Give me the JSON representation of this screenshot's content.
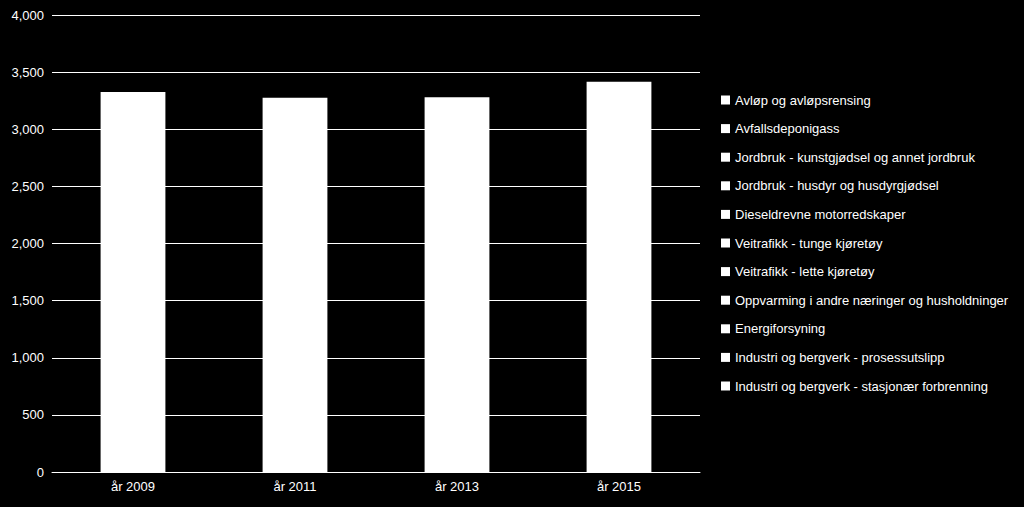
{
  "chart_data": {
    "type": "bar",
    "stacked": true,
    "categories": [
      "år 2009",
      "år 2011",
      "år 2013",
      "år 2015"
    ],
    "values": [
      3325,
      3275,
      3280,
      3415
    ],
    "color": "#ffffff",
    "legend_labels": [
      "Avløp og avløpsrensing",
      "Avfallsdeponigass",
      "Jordbruk - kunstgjødsel og annet jordbruk",
      "Jordbruk - husdyr og husdyrgjødsel",
      "Dieseldrevne motorredskaper",
      "Veitrafikk - tunge kjøretøy",
      "Veitrafikk - lette kjøretøy",
      "Oppvarming i andre næringer og husholdninger",
      "Energiforsyning",
      "Industri og bergverk - prosessutslipp",
      "Industri og bergverk - stasjonær forbrenning"
    ],
    "ylim": [
      0,
      4000
    ],
    "yticks": [
      0,
      500,
      1000,
      1500,
      2000,
      2500,
      3000,
      3500,
      4000
    ],
    "grid": true,
    "legend": "right"
  }
}
